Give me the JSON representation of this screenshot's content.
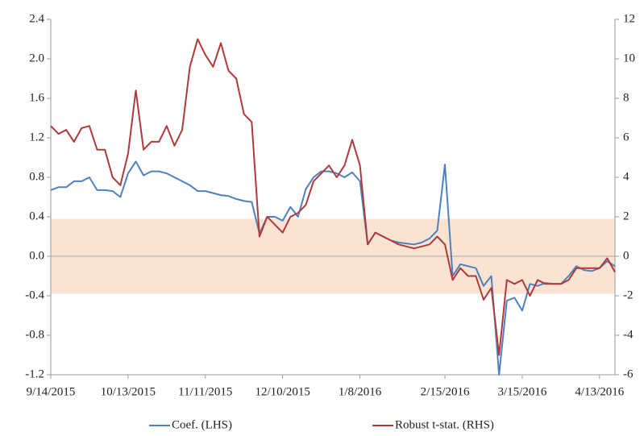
{
  "chart_data": {
    "type": "line",
    "categories": [
      "9/14/2015",
      null,
      null,
      null,
      null,
      null,
      null,
      null,
      null,
      null,
      "10/13/2015",
      null,
      null,
      null,
      null,
      null,
      null,
      null,
      null,
      null,
      "11/11/2015",
      null,
      null,
      null,
      null,
      null,
      null,
      null,
      null,
      null,
      "12/10/2015",
      null,
      null,
      null,
      null,
      null,
      null,
      null,
      null,
      null,
      "1/8/2016",
      null,
      null,
      null,
      null,
      null,
      null,
      null,
      null,
      null,
      null,
      "2/15/2016",
      null,
      null,
      null,
      null,
      null,
      null,
      null,
      null,
      null,
      "3/15/2016",
      null,
      null,
      null,
      null,
      null,
      null,
      null,
      null,
      null,
      "4/13/2016",
      null,
      null
    ],
    "series": [
      {
        "name": "Coef. (LHS)",
        "color": "#4f81bd",
        "values": [
          0.67,
          0.7,
          0.7,
          0.76,
          0.76,
          0.8,
          0.67,
          0.67,
          0.66,
          0.6,
          0.84,
          0.96,
          0.82,
          0.86,
          0.86,
          0.84,
          0.8,
          0.76,
          0.72,
          0.66,
          0.66,
          0.64,
          0.62,
          0.61,
          0.58,
          0.56,
          0.55,
          0.23,
          0.4,
          0.4,
          0.36,
          0.5,
          0.4,
          0.68,
          0.8,
          0.86,
          0.86,
          0.84,
          0.8,
          0.85,
          0.76,
          0.12,
          0.24,
          0.2,
          0.16,
          0.14,
          0.13,
          0.12,
          0.14,
          0.18,
          0.26,
          0.93,
          -0.2,
          -0.08,
          -0.1,
          -0.12,
          -0.3,
          -0.2,
          -1.2,
          -0.45,
          -0.42,
          -0.55,
          -0.28,
          -0.3,
          -0.27,
          -0.28,
          -0.28,
          -0.2,
          -0.1,
          -0.14,
          -0.15,
          -0.12,
          -0.05,
          -0.1
        ]
      },
      {
        "name": "Robust t-stat. (RHS)",
        "color": "#b03a3a",
        "axis": "y2",
        "values": [
          6.6,
          6.2,
          6.4,
          5.8,
          6.5,
          6.6,
          5.4,
          5.4,
          4.0,
          3.6,
          5.2,
          8.4,
          5.4,
          5.8,
          5.8,
          6.6,
          5.6,
          6.4,
          9.6,
          11.0,
          10.2,
          9.6,
          10.8,
          9.4,
          9.0,
          7.2,
          6.8,
          1.0,
          2.0,
          1.6,
          1.2,
          2.0,
          2.2,
          2.6,
          3.8,
          4.2,
          4.6,
          4.0,
          4.6,
          5.9,
          4.6,
          0.6,
          1.2,
          1.0,
          0.8,
          0.6,
          0.5,
          0.4,
          0.5,
          0.6,
          1.0,
          0.6,
          -1.2,
          -0.6,
          -1.0,
          -1.0,
          -2.2,
          -1.6,
          -5.0,
          -1.2,
          -1.4,
          -1.2,
          -2.0,
          -1.2,
          -1.4,
          -1.4,
          -1.4,
          -1.2,
          -0.6,
          -0.6,
          -0.6,
          -0.6,
          -0.1,
          -0.8
        ]
      }
    ],
    "band": {
      "range": [
        -0.38,
        0.38
      ],
      "color": "#fbe3d3"
    },
    "ylim": [
      -1.2,
      2.4
    ],
    "yticks": [
      -1.2,
      -0.8,
      -0.4,
      {
        "value": 0,
        "label": "0.0"
      },
      0.4,
      0.8,
      1.2,
      1.6,
      {
        "value": 2,
        "label": "2.0"
      },
      2.4
    ],
    "y2lim": [
      -6,
      12
    ],
    "y2ticks": [
      -6,
      -4,
      -2,
      0,
      2,
      4,
      6,
      8,
      10,
      12
    ],
    "legend": "bottom"
  }
}
